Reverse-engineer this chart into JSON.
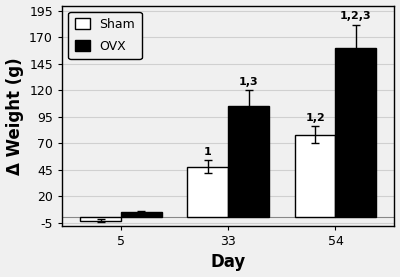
{
  "days": [
    5,
    33,
    54
  ],
  "sham_values": [
    -3,
    48,
    78
  ],
  "sham_errors": [
    1.5,
    6,
    8
  ],
  "ovx_values": [
    5,
    105,
    160
  ],
  "ovx_errors": [
    1.5,
    15,
    22
  ],
  "sham_annotations": [
    "",
    "1",
    "1,2"
  ],
  "ovx_annotations": [
    "",
    "1,3",
    "1,2,3"
  ],
  "ylim": [
    -8,
    200
  ],
  "yticks": [
    -5,
    20,
    45,
    70,
    95,
    120,
    145,
    170,
    195
  ],
  "xlabel": "Day",
  "ylabel": "Δ Weight (g)",
  "sham_color": "white",
  "ovx_color": "black",
  "bar_edge_color": "black",
  "bar_width": 0.38,
  "background_color": "#f0f0f0",
  "legend_labels": [
    "Sham",
    "OVX"
  ],
  "grid_color": "#d0d0d0",
  "annotation_fontsize": 8,
  "axis_label_fontsize": 12,
  "tick_fontsize": 9,
  "x_positions": [
    0,
    1,
    2
  ]
}
